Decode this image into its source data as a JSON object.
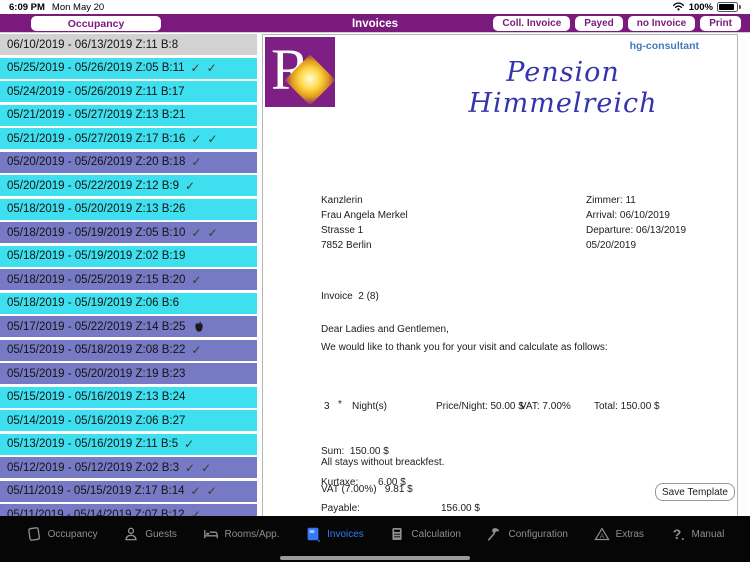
{
  "status_bar": {
    "time": "6:09 PM",
    "date": "Mon May 20",
    "battery_percent": "100%"
  },
  "toolbar": {
    "back_label": "Occupancy",
    "title": "Invoices",
    "buttons": [
      "Coll. Invoice",
      "Payed",
      "no Invoice",
      "Print"
    ]
  },
  "colors": {
    "navbar_purple": "#7a1a7c",
    "row_cyan": "#3edfee",
    "row_purple": "#7679c3",
    "row_selected_gray": "#d2d2d2",
    "tab_active_blue": "#3478f6",
    "logo_purple": "#7d1f85",
    "brand_blue": "#4379b8",
    "title_blue": "#3434ae"
  },
  "booking_list": {
    "items": [
      {
        "label": "06/10/2019 - 06/13/2019 Z:11 B:8",
        "variant": "selected",
        "checks": 0
      },
      {
        "label": "05/25/2019 - 05/26/2019 Z:05 B:11",
        "variant": "cyan",
        "checks": 2
      },
      {
        "label": "05/24/2019 - 05/26/2019 Z:11 B:17",
        "variant": "cyan",
        "checks": 0
      },
      {
        "label": "05/21/2019 - 05/27/2019 Z:13 B:21",
        "variant": "cyan",
        "checks": 0
      },
      {
        "label": "05/21/2019 - 05/27/2019 Z:17 B:16",
        "variant": "cyan",
        "checks": 2
      },
      {
        "label": "05/20/2019 - 05/26/2019 Z:20 B:18",
        "variant": "purple",
        "checks": 1
      },
      {
        "label": "05/20/2019 - 05/22/2019 Z:12 B:9",
        "variant": "cyan",
        "checks": 1
      },
      {
        "label": "05/18/2019 - 05/20/2019 Z:13 B:26",
        "variant": "cyan",
        "checks": 0
      },
      {
        "label": "05/18/2019 - 05/19/2019 Z:05 B:10",
        "variant": "purple",
        "checks": 2
      },
      {
        "label": "05/18/2019 - 05/19/2019 Z:02 B:19",
        "variant": "cyan",
        "checks": 0
      },
      {
        "label": "05/18/2019 - 05/25/2019 Z:15 B:20",
        "variant": "purple",
        "checks": 1
      },
      {
        "label": "05/18/2019 - 05/19/2019 Z:06 B:6",
        "variant": "cyan",
        "checks": 0
      },
      {
        "label": "05/17/2019 - 05/22/2019 Z:14 B:25",
        "variant": "purple",
        "checks": 0,
        "marker": "apple-icon"
      },
      {
        "label": "05/15/2019 - 05/18/2019 Z:08 B:22",
        "variant": "purple",
        "checks": 1
      },
      {
        "label": "05/15/2019 - 05/20/2019 Z:19 B:23",
        "variant": "purple",
        "checks": 0
      },
      {
        "label": "05/15/2019 - 05/16/2019 Z:13 B:24",
        "variant": "cyan",
        "checks": 0
      },
      {
        "label": "05/14/2019 - 05/16/2019 Z:06 B:27",
        "variant": "cyan",
        "checks": 0
      },
      {
        "label": "05/13/2019 - 05/16/2019 Z:11 B:5",
        "variant": "cyan",
        "checks": 1
      },
      {
        "label": "05/12/2019 - 05/12/2019 Z:02 B:3",
        "variant": "purple",
        "checks": 2
      },
      {
        "label": "05/11/2019 - 05/15/2019 Z:17 B:14",
        "variant": "purple",
        "checks": 2
      },
      {
        "label": "05/11/2019 - 05/14/2019 Z:07 B:12",
        "variant": "purple",
        "checks": 1
      }
    ]
  },
  "invoice": {
    "logo_letter": "R",
    "brand": "hg-consultant",
    "title": "Pension Himmelreich",
    "recipient": [
      "Kanzlerin",
      "Frau Angela Merkel",
      "Strasse 1",
      "7852 Berlin"
    ],
    "details": [
      "Zimmer: 11",
      "Arrival: 06/10/2019",
      "Departure: 06/13/2019",
      "05/20/2019"
    ],
    "invoice_no": "Invoice  2 (8)",
    "salutation": "Dear Ladies and Gentlemen,",
    "intro": "We would like to thank you for your visit and calculate as follows:",
    "line_item": {
      "qty": "3",
      "star": "*",
      "unit": "Night(s)",
      "price": "Price/Night: 50.00 $",
      "vat": "VAT: 7.00%",
      "total": "Total: 150.00 $"
    },
    "sum_line": "Sum:  150.00 $",
    "vat_line": "VAT (7.00%)   9.81 $",
    "net_line": "Netamount: 140.19 $",
    "note": "All stays without breackfest.",
    "kurtaxe_label": "Kurtaxe:",
    "kurtaxe_value": "6.00 $",
    "save_template_label": "Save Template",
    "payable_label": "Payable:",
    "payable_value": "156.00 $"
  },
  "tab_bar": {
    "tabs": [
      {
        "label": "Occupancy",
        "icon": "flipchart-icon",
        "active": false
      },
      {
        "label": "Guests",
        "icon": "person-icon",
        "active": false
      },
      {
        "label": "Rooms/App.",
        "icon": "bed-icon",
        "active": false
      },
      {
        "label": "Invoices",
        "icon": "invoice-icon",
        "active": true
      },
      {
        "label": "Calculation",
        "icon": "calculator-icon",
        "active": false
      },
      {
        "label": "Configuration",
        "icon": "hammer-icon",
        "active": false
      },
      {
        "label": "Extras",
        "icon": "warning-triangle-icon",
        "active": false
      },
      {
        "label": "Manual",
        "icon": "question-mark-icon",
        "active": false
      }
    ]
  }
}
